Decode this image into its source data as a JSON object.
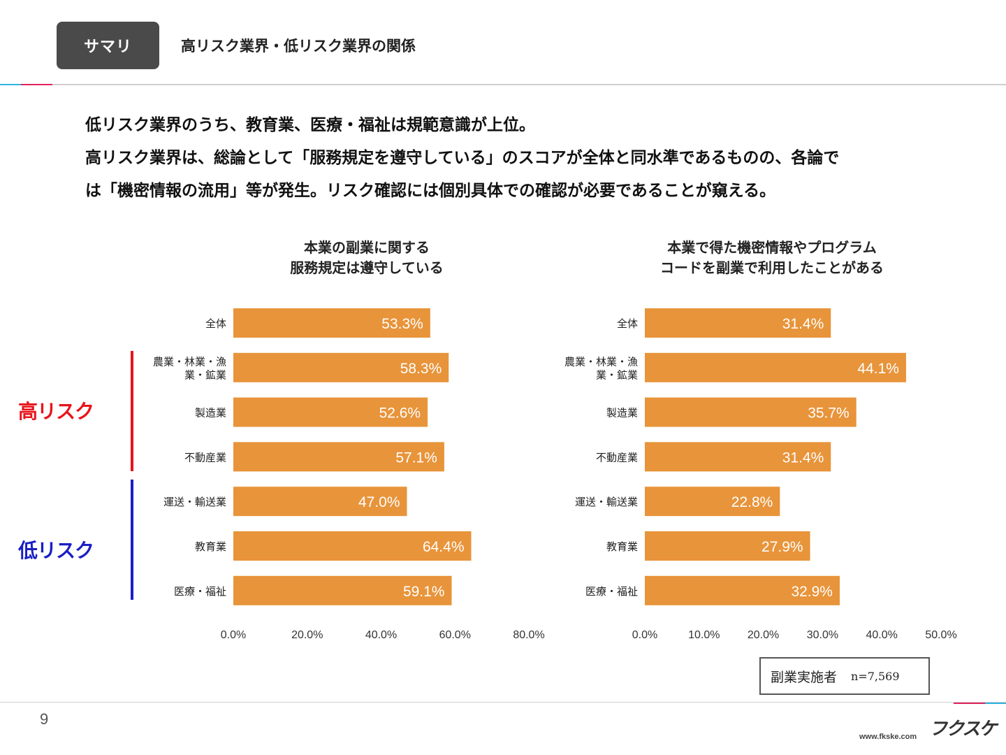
{
  "header": {
    "tag": "サマリ",
    "title": "高リスク業界・低リスク業界の関係"
  },
  "intro": {
    "line1": "低リスク業界のうち、教育業、医療・福祉は規範意識が上位。",
    "line2": "高リスク業界は、総論として「服務規定を遵守している」のスコアが全体と同水準であるものの、各論で",
    "line3": "は「機密情報の流用」等が発生。リスク確認には個別具体での確認が必要であることが窺える。"
  },
  "risk_labels": {
    "high": "高リスク",
    "low": "低リスク"
  },
  "colors": {
    "bar": "#E8943A",
    "high": "#E8141B",
    "low": "#1A1FC4",
    "accent_left": "#2FB3E0",
    "accent_right": "#E0245E"
  },
  "chart_data": [
    {
      "type": "bar",
      "orientation": "horizontal",
      "title_line1": "本業の副業に関する",
      "title_line2": "服務規定は遵守している",
      "categories": [
        "全体",
        "農業・林業・漁\n業・鉱業",
        "製造業",
        "不動産業",
        "運送・輸送業",
        "教育業",
        "医療・福祉"
      ],
      "values": [
        53.3,
        58.3,
        52.6,
        57.1,
        47.0,
        64.4,
        59.1
      ],
      "value_labels": [
        "53.3%",
        "58.3%",
        "52.6%",
        "57.1%",
        "47.0%",
        "64.4%",
        "59.1%"
      ],
      "xlim": [
        0,
        80
      ],
      "ticks": [
        0,
        20,
        40,
        60,
        80
      ],
      "tick_labels": [
        "0.0%",
        "20.0%",
        "40.0%",
        "60.0%",
        "80.0%"
      ]
    },
    {
      "type": "bar",
      "orientation": "horizontal",
      "title_line1": "本業で得た機密情報やプログラム",
      "title_line2": "コードを副業で利用したことがある",
      "categories": [
        "全体",
        "農業・林業・漁\n業・鉱業",
        "製造業",
        "不動産業",
        "運送・輸送業",
        "教育業",
        "医療・福祉"
      ],
      "values": [
        31.4,
        44.1,
        35.7,
        31.4,
        22.8,
        27.9,
        32.9
      ],
      "value_labels": [
        "31.4%",
        "44.1%",
        "35.7%",
        "31.4%",
        "22.8%",
        "27.9%",
        "32.9%"
      ],
      "xlim": [
        0,
        50
      ],
      "ticks": [
        0,
        10,
        20,
        30,
        40,
        50
      ],
      "tick_labels": [
        "0.0%",
        "10.0%",
        "20.0%",
        "30.0%",
        "40.0%",
        "50.0%"
      ]
    }
  ],
  "legend": {
    "label": "副業実施者",
    "n": "n=7,569"
  },
  "footer": {
    "page": "9",
    "logo": "フクスケ",
    "url": "www.fkske.com"
  }
}
